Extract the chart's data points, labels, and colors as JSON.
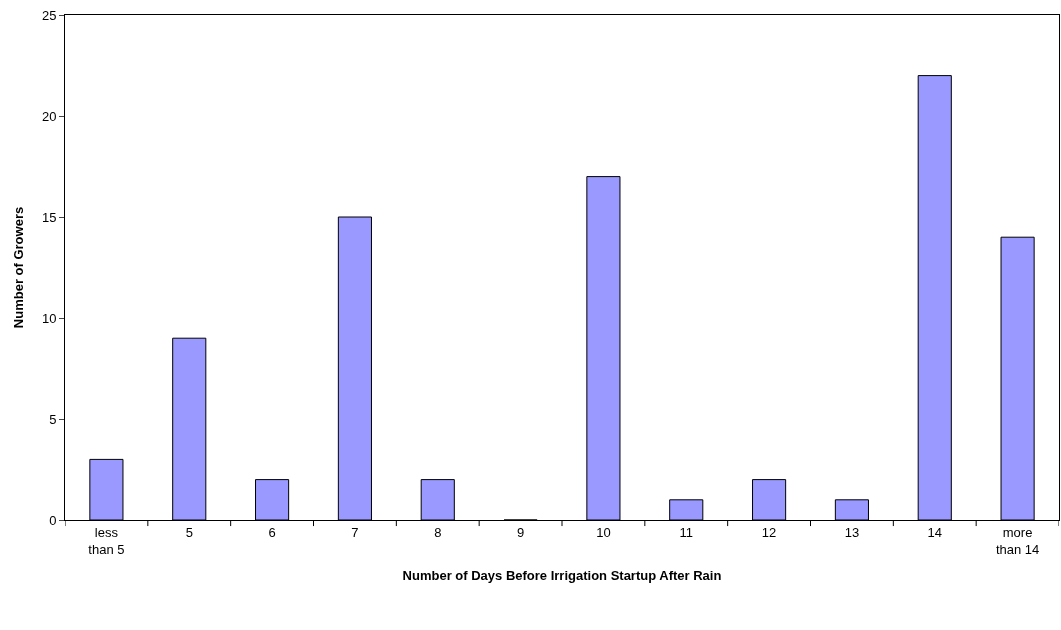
{
  "chart_data": {
    "type": "bar",
    "xlabel": "Number of Days Before Irrigation Startup After Rain",
    "ylabel": "Number of Growers",
    "categories": [
      "less\nthan 5",
      "5",
      "6",
      "7",
      "8",
      "9",
      "10",
      "11",
      "12",
      "13",
      "14",
      "more\nthan 14"
    ],
    "values": [
      3,
      9,
      2,
      15,
      2,
      0,
      17,
      1,
      2,
      1,
      22,
      14
    ],
    "color": "#9999ff",
    "ylim": [
      0,
      25
    ],
    "yticks": [
      0,
      5,
      10,
      15,
      20,
      25
    ],
    "grid": false,
    "legend": false
  }
}
